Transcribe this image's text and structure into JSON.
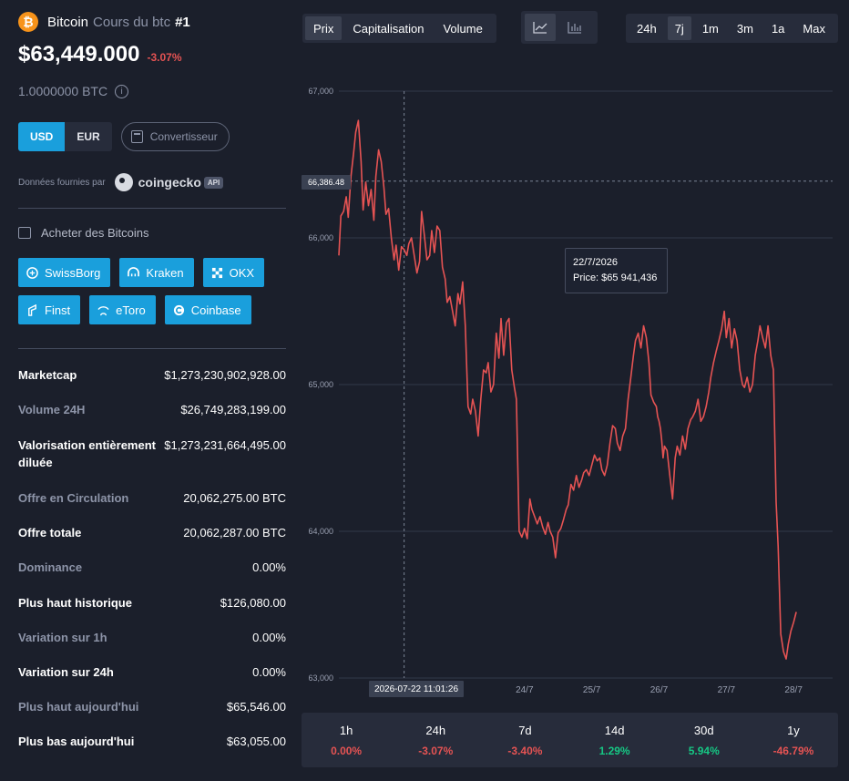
{
  "coin": {
    "name": "Bitcoin",
    "subtitle": "Cours du btc",
    "rank": "#1",
    "logo_symbol": "₿",
    "price": "$63,449.000",
    "change": "-3.07%",
    "unit": "1.0000000 BTC"
  },
  "currency": {
    "usd": "USD",
    "eur": "EUR",
    "selected": "USD",
    "converter": "Convertisseur"
  },
  "provider": {
    "label": "Données fournies par",
    "name": "coingecko",
    "badge": "API"
  },
  "buy": {
    "label": "Acheter des Bitcoins",
    "exchanges": [
      "SwissBorg",
      "Kraken",
      "OKX",
      "Finst",
      "eToro",
      "Coinbase"
    ]
  },
  "stats": [
    {
      "key": "Marketcap",
      "value": "$1,273,230,902,928.00",
      "style": "w"
    },
    {
      "key": "Volume 24H",
      "value": "$26,749,283,199.00",
      "style": "g"
    },
    {
      "key": "Valorisation entièrement diluée",
      "value": "$1,273,231,664,495.00",
      "style": "w"
    },
    {
      "key": "Offre en Circulation",
      "value": "20,062,275.00 BTC",
      "style": "g"
    },
    {
      "key": "Offre totale",
      "value": "20,062,287.00 BTC",
      "style": "w"
    },
    {
      "key": "Dominance",
      "value": "0.00%",
      "style": "g"
    },
    {
      "key": "Plus haut historique",
      "value": "$126,080.00",
      "style": "w"
    },
    {
      "key": "Variation sur 1h",
      "value": "0.00%",
      "style": "g"
    },
    {
      "key": "Variation sur 24h",
      "value": "0.00%",
      "style": "w"
    },
    {
      "key": "Plus haut aujourd'hui",
      "value": "$65,546.00",
      "style": "g"
    },
    {
      "key": "Plus bas aujourd'hui",
      "value": "$63,055.00",
      "style": "w"
    }
  ],
  "tabs": {
    "items": [
      "Prix",
      "Capitalisation",
      "Volume"
    ],
    "selected": "Prix"
  },
  "chart_type": {
    "selected": "line"
  },
  "ranges": {
    "items": [
      "24h",
      "7j",
      "1m",
      "3m",
      "1a",
      "Max"
    ],
    "selected": "7j"
  },
  "tooltip": {
    "date": "22/7/2026",
    "price": "Price: $65 941,436"
  },
  "crosshair": {
    "x_label": "2026-07-22 11:01:26",
    "y_label": "66,386.48"
  },
  "performance": [
    {
      "label": "1h",
      "value": "0.00%",
      "color": "#e55353"
    },
    {
      "label": "24h",
      "value": "-3.07%",
      "color": "#e55353"
    },
    {
      "label": "7d",
      "value": "-3.40%",
      "color": "#e55353"
    },
    {
      "label": "14d",
      "value": "1.29%",
      "color": "#16c784"
    },
    {
      "label": "30d",
      "value": "5.94%",
      "color": "#16c784"
    },
    {
      "label": "1y",
      "value": "-46.79%",
      "color": "#e55353"
    }
  ],
  "colors": {
    "accent": "#1a9fdc",
    "line": "#e55353",
    "up": "#16c784",
    "down": "#e55353"
  },
  "chart_data": {
    "type": "line",
    "title": "",
    "xlabel": "",
    "ylabel": "",
    "ylim": [
      63000,
      67000
    ],
    "yticks": [
      "67,000",
      "66,000",
      "65,000",
      "64,000",
      "63,000"
    ],
    "ytick_values": [
      67000,
      66000,
      65000,
      64000,
      63000
    ],
    "xticks": [
      "24/7",
      "25/7",
      "26/7",
      "27/7",
      "28/7"
    ],
    "xtick_positions": [
      3,
      4,
      5,
      6,
      7
    ],
    "xlim": [
      0.24,
      7.58
    ],
    "grid": true,
    "series": [
      {
        "values": [
          [
            0.24,
            65880
          ],
          [
            0.27,
            66150
          ],
          [
            0.31,
            66180
          ],
          [
            0.35,
            66280
          ],
          [
            0.38,
            66140
          ],
          [
            0.42,
            66420
          ],
          [
            0.46,
            66580
          ],
          [
            0.49,
            66720
          ],
          [
            0.53,
            66800
          ],
          [
            0.57,
            66520
          ],
          [
            0.6,
            66190
          ],
          [
            0.64,
            66380
          ],
          [
            0.68,
            66220
          ],
          [
            0.72,
            66330
          ],
          [
            0.76,
            66120
          ],
          [
            0.79,
            66420
          ],
          [
            0.83,
            66600
          ],
          [
            0.87,
            66520
          ],
          [
            0.91,
            66340
          ],
          [
            0.94,
            66160
          ],
          [
            0.98,
            66200
          ],
          [
            1.02,
            66000
          ],
          [
            1.06,
            65850
          ],
          [
            1.09,
            65950
          ],
          [
            1.13,
            65780
          ],
          [
            1.17,
            65940
          ],
          [
            1.21,
            65920
          ],
          [
            1.25,
            65880
          ],
          [
            1.28,
            65960
          ],
          [
            1.32,
            66000
          ],
          [
            1.36,
            65880
          ],
          [
            1.4,
            65760
          ],
          [
            1.44,
            65840
          ],
          [
            1.47,
            66180
          ],
          [
            1.51,
            66020
          ],
          [
            1.55,
            65850
          ],
          [
            1.59,
            65880
          ],
          [
            1.62,
            66050
          ],
          [
            1.66,
            65900
          ],
          [
            1.7,
            66080
          ],
          [
            1.74,
            66050
          ],
          [
            1.78,
            65800
          ],
          [
            1.82,
            65720
          ],
          [
            1.85,
            65560
          ],
          [
            1.89,
            65600
          ],
          [
            1.93,
            65500
          ],
          [
            1.97,
            65400
          ],
          [
            2.01,
            65620
          ],
          [
            2.04,
            65550
          ],
          [
            2.08,
            65700
          ],
          [
            2.12,
            65400
          ],
          [
            2.16,
            64850
          ],
          [
            2.2,
            64800
          ],
          [
            2.23,
            64900
          ],
          [
            2.27,
            64820
          ],
          [
            2.31,
            64650
          ],
          [
            2.35,
            64900
          ],
          [
            2.39,
            65100
          ],
          [
            2.43,
            65080
          ],
          [
            2.46,
            65150
          ],
          [
            2.5,
            64950
          ],
          [
            2.54,
            65000
          ],
          [
            2.58,
            65350
          ],
          [
            2.62,
            65180
          ],
          [
            2.65,
            65450
          ],
          [
            2.69,
            65200
          ],
          [
            2.73,
            65420
          ],
          [
            2.77,
            65450
          ],
          [
            2.81,
            65100
          ],
          [
            2.85,
            64980
          ],
          [
            2.88,
            64900
          ],
          [
            2.92,
            64000
          ],
          [
            2.96,
            63960
          ],
          [
            3.0,
            64020
          ],
          [
            3.04,
            63950
          ],
          [
            3.08,
            64220
          ],
          [
            3.11,
            64150
          ],
          [
            3.15,
            64100
          ],
          [
            3.19,
            64050
          ],
          [
            3.23,
            64100
          ],
          [
            3.27,
            64030
          ],
          [
            3.31,
            63980
          ],
          [
            3.35,
            64060
          ],
          [
            3.38,
            64000
          ],
          [
            3.42,
            63960
          ],
          [
            3.46,
            63820
          ],
          [
            3.5,
            63990
          ],
          [
            3.54,
            64020
          ],
          [
            3.58,
            64080
          ],
          [
            3.62,
            64150
          ],
          [
            3.65,
            64180
          ],
          [
            3.69,
            64320
          ],
          [
            3.73,
            64280
          ],
          [
            3.77,
            64380
          ],
          [
            3.81,
            64300
          ],
          [
            3.85,
            64350
          ],
          [
            3.88,
            64400
          ],
          [
            3.92,
            64420
          ],
          [
            3.96,
            64380
          ],
          [
            4.0,
            64450
          ],
          [
            4.04,
            64520
          ],
          [
            4.08,
            64480
          ],
          [
            4.12,
            64500
          ],
          [
            4.15,
            64420
          ],
          [
            4.19,
            64380
          ],
          [
            4.23,
            64450
          ],
          [
            4.27,
            64600
          ],
          [
            4.31,
            64720
          ],
          [
            4.35,
            64700
          ],
          [
            4.38,
            64600
          ],
          [
            4.42,
            64550
          ],
          [
            4.46,
            64650
          ],
          [
            4.5,
            64700
          ],
          [
            4.54,
            64900
          ],
          [
            4.58,
            65050
          ],
          [
            4.62,
            65200
          ],
          [
            4.65,
            65300
          ],
          [
            4.69,
            65350
          ],
          [
            4.73,
            65250
          ],
          [
            4.77,
            65400
          ],
          [
            4.81,
            65320
          ],
          [
            4.85,
            65150
          ],
          [
            4.88,
            64930
          ],
          [
            4.92,
            64880
          ],
          [
            4.96,
            64850
          ],
          [
            4.98,
            64780
          ],
          [
            5.0,
            64750
          ],
          [
            5.02,
            64700
          ],
          [
            5.04,
            64620
          ],
          [
            5.06,
            64500
          ],
          [
            5.08,
            64580
          ],
          [
            5.12,
            64550
          ],
          [
            5.16,
            64380
          ],
          [
            5.2,
            64220
          ],
          [
            5.24,
            64500
          ],
          [
            5.27,
            64580
          ],
          [
            5.31,
            64520
          ],
          [
            5.35,
            64650
          ],
          [
            5.39,
            64560
          ],
          [
            5.43,
            64700
          ],
          [
            5.47,
            64760
          ],
          [
            5.5,
            64780
          ],
          [
            5.54,
            64820
          ],
          [
            5.58,
            64900
          ],
          [
            5.62,
            64750
          ],
          [
            5.66,
            64780
          ],
          [
            5.7,
            64850
          ],
          [
            5.74,
            64950
          ],
          [
            5.77,
            65050
          ],
          [
            5.81,
            65150
          ],
          [
            5.85,
            65230
          ],
          [
            5.89,
            65300
          ],
          [
            5.93,
            65380
          ],
          [
            5.97,
            65500
          ],
          [
            6.0,
            65320
          ],
          [
            6.04,
            65450
          ],
          [
            6.08,
            65250
          ],
          [
            6.12,
            65380
          ],
          [
            6.16,
            65300
          ],
          [
            6.2,
            65100
          ],
          [
            6.24,
            65000
          ],
          [
            6.27,
            64980
          ],
          [
            6.31,
            65050
          ],
          [
            6.35,
            64950
          ],
          [
            6.39,
            65000
          ],
          [
            6.43,
            65200
          ],
          [
            6.47,
            65300
          ],
          [
            6.5,
            65400
          ],
          [
            6.54,
            65320
          ],
          [
            6.58,
            65250
          ],
          [
            6.62,
            65400
          ],
          [
            6.66,
            65200
          ],
          [
            6.7,
            65100
          ],
          [
            6.74,
            64200
          ],
          [
            6.77,
            63900
          ],
          [
            6.81,
            63300
          ],
          [
            6.85,
            63180
          ],
          [
            6.89,
            63130
          ],
          [
            6.92,
            63230
          ],
          [
            6.96,
            63320
          ],
          [
            7.0,
            63380
          ],
          [
            7.04,
            63450
          ]
        ]
      }
    ]
  }
}
